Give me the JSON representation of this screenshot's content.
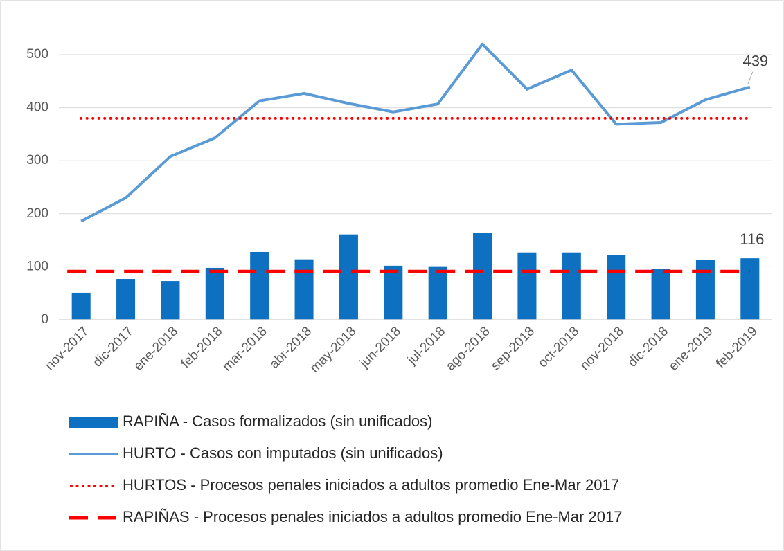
{
  "chart_data": {
    "type": "combo",
    "categories": [
      "nov-2017",
      "dic-2017",
      "ene-2018",
      "feb-2018",
      "mar-2018",
      "abr-2018",
      "may-2018",
      "jun-2018",
      "jul-2018",
      "ago-2018",
      "sep-2018",
      "oct-2018",
      "nov-2018",
      "dic-2018",
      "ene-2019",
      "feb-2019"
    ],
    "series": [
      {
        "name": "RAPIÑA - Casos formalizados (sin unificados)",
        "type": "bar",
        "color": "#0e70c0",
        "values": [
          51,
          77,
          73,
          98,
          128,
          114,
          161,
          102,
          101,
          164,
          127,
          127,
          122,
          96,
          113,
          116
        ]
      },
      {
        "name": "HURTO - Casos con imputados (sin unificados)",
        "type": "line",
        "color": "#5b9bd5",
        "values": [
          186,
          230,
          308,
          343,
          413,
          427,
          408,
          392,
          407,
          520,
          435,
          471,
          369,
          372,
          415,
          439
        ]
      },
      {
        "name": "HURTOS - Procesos penales iniciados a adultos promedio Ene-Mar 2017",
        "type": "dotted",
        "color": "#ff0000",
        "value": 380
      },
      {
        "name": "RAPIÑAS - Procesos penales iniciados a adultos promedio Ene-Mar 2017",
        "type": "dashed",
        "color": "#ff0000",
        "value": 91
      }
    ],
    "ylim": [
      0,
      550
    ],
    "yticks": [
      0,
      100,
      200,
      300,
      400,
      500
    ],
    "grid": true
  }
}
